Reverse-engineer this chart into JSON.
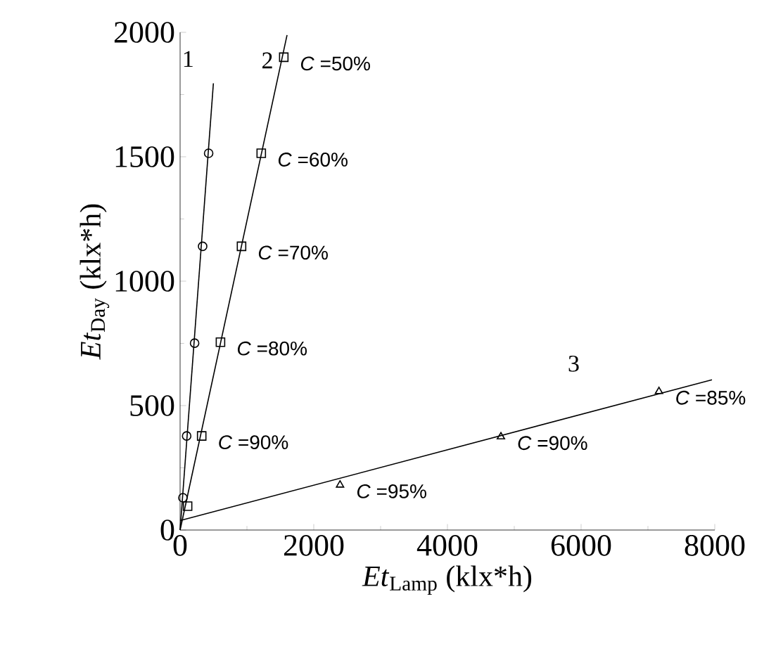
{
  "chart_data": {
    "type": "scatter",
    "xlabel": "*Et*$_{Lamp}$ (klx*h)",
    "ylabel": "*Et*$_{Day}$ (klx*h)",
    "xlim": [
      0,
      8000
    ],
    "ylim": [
      0,
      2000
    ],
    "xticks": [
      0,
      2000,
      4000,
      6000,
      8000
    ],
    "yticks": [
      0,
      500,
      1000,
      1500,
      2000
    ],
    "series": [
      {
        "marker": "circle",
        "color": "#000000",
        "x": [
          42,
          98,
          217,
          337,
          427
        ],
        "values": [
          130,
          378,
          751,
          1140,
          1514
        ]
      },
      {
        "marker": "square",
        "color": "#000000",
        "x": [
          112,
          323,
          604,
          919,
          1214,
          1551
        ],
        "values": [
          96,
          378,
          755,
          1140,
          1514,
          1900
        ]
      },
      {
        "marker": "triangle",
        "color": "#000000",
        "x": [
          2393,
          4800,
          7165
        ],
        "values": [
          181,
          375,
          557
        ]
      },
      {
        "type": "line",
        "name": "1",
        "marker": "none",
        "color": "#000000",
        "x": [
          0,
          498
        ],
        "values": [
          0,
          1795
        ]
      },
      {
        "type": "line",
        "name": "2",
        "marker": "none",
        "color": "#000000",
        "x": [
          0,
          1600
        ],
        "values": [
          0,
          1989
        ]
      },
      {
        "type": "line",
        "name": "3",
        "marker": "none",
        "color": "#000000",
        "x": [
          0,
          7958
        ],
        "values": [
          38,
          604
        ]
      }
    ],
    "annotations": [
      {
        "text": "*C* =50%",
        "x": 1551,
        "y": 1900
      },
      {
        "text": "*C* =60%",
        "x": 1214,
        "y": 1514
      },
      {
        "text": "*C* =70%",
        "x": 919,
        "y": 1140
      },
      {
        "text": "*C* =80%",
        "x": 604,
        "y": 755
      },
      {
        "text": "*C* =90%",
        "x": 323,
        "y": 378
      },
      {
        "text": "*C* =95%",
        "x": 2393,
        "y": 181
      },
      {
        "text": "*C* =90%",
        "x": 4800,
        "y": 375
      },
      {
        "text": "*C* =85%",
        "x": 7165,
        "y": 557
      }
    ]
  }
}
